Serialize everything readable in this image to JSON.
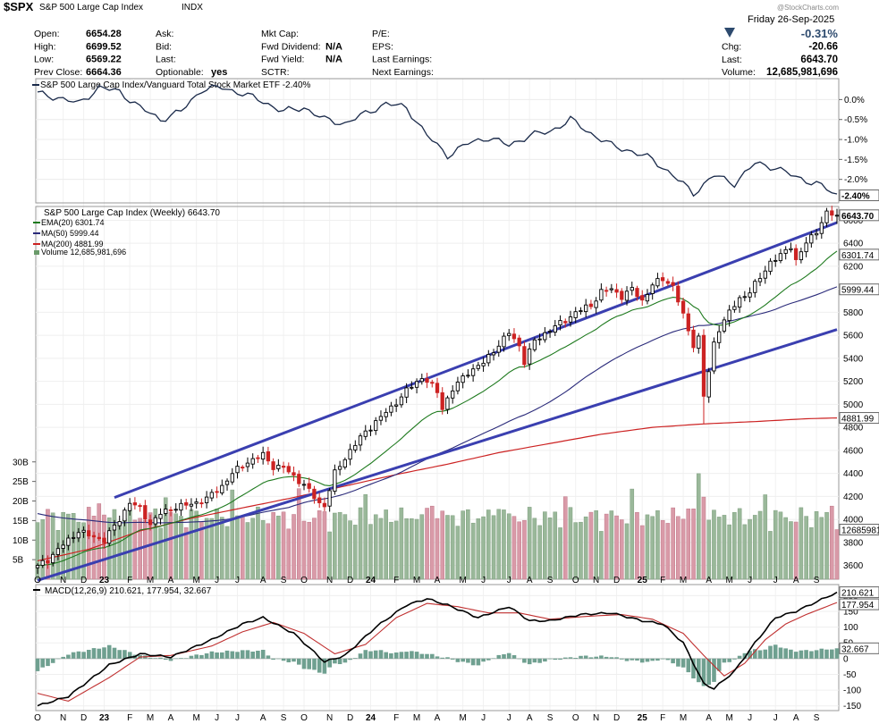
{
  "header": {
    "symbol": "$SPX",
    "name": "S&P 500 Large Cap Index",
    "exchange": "INDX",
    "date": "Friday  26-Sep-2025",
    "change_pct": "-0.31%",
    "watermark": "@StockCharts.com",
    "arrow": "triangle-down-icon",
    "col1": [
      {
        "label": "Open:",
        "value": "6654.28"
      },
      {
        "label": "High:",
        "value": "6699.52"
      },
      {
        "label": "Low:",
        "value": "6569.22"
      },
      {
        "label": "Prev Close:",
        "value": "6664.36"
      }
    ],
    "col2": [
      {
        "label": "Ask:",
        "value": ""
      },
      {
        "label": "Bid:",
        "value": ""
      },
      {
        "label": "Last:",
        "value": ""
      },
      {
        "label": "Optionable:",
        "value": "yes"
      }
    ],
    "col3": [
      {
        "label": "Mkt Cap:",
        "value": ""
      },
      {
        "label": "Fwd Dividend:",
        "value": "N/A"
      },
      {
        "label": "Fwd Yield:",
        "value": "N/A"
      },
      {
        "label": "SCTR:",
        "value": ""
      }
    ],
    "col4": [
      {
        "label": "P/E:",
        "value": ""
      },
      {
        "label": "EPS:",
        "value": ""
      },
      {
        "label": "Last Earnings:",
        "value": ""
      },
      {
        "label": "Next Earnings:",
        "value": ""
      }
    ],
    "col5": [
      {
        "label": "Chg:",
        "value": "-20.66"
      },
      {
        "label": "Last:",
        "value": "6643.70"
      },
      {
        "label": "Volume:",
        "value": "12,685,981,696"
      }
    ]
  },
  "colors": {
    "up": "#000000",
    "down": "#cc2222",
    "ema": "#1e7a1e",
    "ma50": "#2a2a7a",
    "ma200": "#cc2222",
    "channel": "#3a3fb0",
    "vol_up": "#9ab89a",
    "vol_down": "#d99aa8",
    "hist": "#6fa090"
  },
  "chart_data": [
    {
      "type": "line",
      "panel": "relative-strength",
      "title": "S&P 500 Large Cap Index/Vanguard Total Stock Market ETF -2.40%",
      "ylim": [
        -2.5,
        0.3
      ],
      "yticks": [
        0.0,
        -0.5,
        -1.0,
        -1.5,
        -2.0
      ],
      "ytick_labels": [
        "0.0%",
        "-0.5%",
        "-1.0%",
        "-1.5%",
        "-2.0%"
      ],
      "last_label": "-2.40%",
      "x": [
        0,
        4,
        8,
        12,
        16,
        20,
        24,
        28,
        32,
        36,
        40,
        44,
        48,
        52,
        56,
        60,
        64,
        68,
        72,
        76,
        80,
        84,
        88,
        92,
        96,
        100,
        104,
        108,
        112,
        116,
        120,
        124,
        128,
        132,
        136,
        140,
        144,
        148,
        152,
        156
      ],
      "values": [
        0.15,
        0.05,
        -0.1,
        0.3,
        0.2,
        -0.2,
        -0.5,
        -0.3,
        0.25,
        0.3,
        0.15,
        -0.05,
        -0.3,
        -0.2,
        -0.5,
        -0.6,
        -0.35,
        -0.1,
        -0.2,
        -0.9,
        -1.4,
        -1.1,
        -0.95,
        -1.15,
        -0.9,
        -0.8,
        -0.5,
        -0.85,
        -1.15,
        -1.3,
        -1.5,
        -1.9,
        -2.35,
        -1.9,
        -2.1,
        -1.6,
        -1.7,
        -1.95,
        -2.1,
        -2.4
      ]
    },
    {
      "type": "candlestick",
      "panel": "price",
      "title": "S&P 500 Large Cap Index (Weekly) 6643.70",
      "ylim": [
        3480,
        6720
      ],
      "yticks": [
        3600,
        3800,
        4000,
        4200,
        4400,
        4600,
        4800,
        5000,
        5200,
        5400,
        5600,
        5800,
        6000,
        6200,
        6400,
        6600
      ],
      "last_price_label": "6643.70",
      "level_labels": [
        "6301.74",
        "5999.44",
        "4881.99"
      ],
      "xlabels": [
        {
          "i": 0,
          "t": "O"
        },
        {
          "i": 5,
          "t": "N"
        },
        {
          "i": 9,
          "t": "D"
        },
        {
          "i": 13,
          "t": "23"
        },
        {
          "i": 18,
          "t": "F"
        },
        {
          "i": 22,
          "t": "M"
        },
        {
          "i": 26,
          "t": "A"
        },
        {
          "i": 31,
          "t": "M"
        },
        {
          "i": 35,
          "t": "J"
        },
        {
          "i": 39,
          "t": "J"
        },
        {
          "i": 44,
          "t": "A"
        },
        {
          "i": 48,
          "t": "S"
        },
        {
          "i": 52,
          "t": "O"
        },
        {
          "i": 57,
          "t": "N"
        },
        {
          "i": 61,
          "t": "D"
        },
        {
          "i": 65,
          "t": "24"
        },
        {
          "i": 70,
          "t": "F"
        },
        {
          "i": 74,
          "t": "M"
        },
        {
          "i": 78,
          "t": "A"
        },
        {
          "i": 83,
          "t": "M"
        },
        {
          "i": 87,
          "t": "J"
        },
        {
          "i": 92,
          "t": "J"
        },
        {
          "i": 96,
          "t": "A"
        },
        {
          "i": 100,
          "t": "S"
        },
        {
          "i": 105,
          "t": "O"
        },
        {
          "i": 109,
          "t": "N"
        },
        {
          "i": 113,
          "t": "D"
        },
        {
          "i": 118,
          "t": "25"
        },
        {
          "i": 122,
          "t": "F"
        },
        {
          "i": 126,
          "t": "M"
        },
        {
          "i": 131,
          "t": "A"
        },
        {
          "i": 135,
          "t": "M"
        },
        {
          "i": 139,
          "t": "J"
        },
        {
          "i": 144,
          "t": "J"
        },
        {
          "i": 148,
          "t": "A"
        },
        {
          "i": 152,
          "t": "S"
        }
      ],
      "anchors": [
        {
          "i": 0,
          "v": 3600
        },
        {
          "i": 2,
          "v": 3650
        },
        {
          "i": 5,
          "v": 3780
        },
        {
          "i": 8,
          "v": 3900
        },
        {
          "i": 10,
          "v": 3860
        },
        {
          "i": 13,
          "v": 3820
        },
        {
          "i": 16,
          "v": 4000
        },
        {
          "i": 18,
          "v": 4150
        },
        {
          "i": 20,
          "v": 4090
        },
        {
          "i": 22,
          "v": 3960
        },
        {
          "i": 24,
          "v": 4050
        },
        {
          "i": 27,
          "v": 4110
        },
        {
          "i": 30,
          "v": 4130
        },
        {
          "i": 33,
          "v": 4180
        },
        {
          "i": 36,
          "v": 4290
        },
        {
          "i": 38,
          "v": 4400
        },
        {
          "i": 41,
          "v": 4500
        },
        {
          "i": 44,
          "v": 4560
        },
        {
          "i": 46,
          "v": 4460
        },
        {
          "i": 48,
          "v": 4450
        },
        {
          "i": 52,
          "v": 4300
        },
        {
          "i": 55,
          "v": 4140
        },
        {
          "i": 56,
          "v": 4120
        },
        {
          "i": 58,
          "v": 4400
        },
        {
          "i": 61,
          "v": 4600
        },
        {
          "i": 64,
          "v": 4760
        },
        {
          "i": 66,
          "v": 4850
        },
        {
          "i": 69,
          "v": 4970
        },
        {
          "i": 72,
          "v": 5120
        },
        {
          "i": 75,
          "v": 5230
        },
        {
          "i": 76,
          "v": 5210
        },
        {
          "i": 78,
          "v": 5100
        },
        {
          "i": 79,
          "v": 4970
        },
        {
          "i": 81,
          "v": 5130
        },
        {
          "i": 84,
          "v": 5280
        },
        {
          "i": 87,
          "v": 5360
        },
        {
          "i": 90,
          "v": 5520
        },
        {
          "i": 92,
          "v": 5620
        },
        {
          "i": 94,
          "v": 5510
        },
        {
          "i": 95,
          "v": 5370
        },
        {
          "i": 97,
          "v": 5550
        },
        {
          "i": 100,
          "v": 5650
        },
        {
          "i": 103,
          "v": 5730
        },
        {
          "i": 105,
          "v": 5800
        },
        {
          "i": 108,
          "v": 5860
        },
        {
          "i": 110,
          "v": 5980
        },
        {
          "i": 112,
          "v": 6000
        },
        {
          "i": 114,
          "v": 5940
        },
        {
          "i": 116,
          "v": 6000
        },
        {
          "i": 118,
          "v": 5900
        },
        {
          "i": 120,
          "v": 6040
        },
        {
          "i": 122,
          "v": 6090
        },
        {
          "i": 124,
          "v": 6030
        },
        {
          "i": 125,
          "v": 5900
        },
        {
          "i": 127,
          "v": 5640
        },
        {
          "i": 128,
          "v": 5520
        },
        {
          "i": 129,
          "v": 5580
        },
        {
          "i": 130,
          "v": 5070
        },
        {
          "i": 131,
          "v": 5280
        },
        {
          "i": 132,
          "v": 5530
        },
        {
          "i": 133,
          "v": 5660
        },
        {
          "i": 135,
          "v": 5800
        },
        {
          "i": 137,
          "v": 5920
        },
        {
          "i": 139,
          "v": 5980
        },
        {
          "i": 141,
          "v": 6100
        },
        {
          "i": 143,
          "v": 6240
        },
        {
          "i": 145,
          "v": 6290
        },
        {
          "i": 147,
          "v": 6380
        },
        {
          "i": 148,
          "v": 6250
        },
        {
          "i": 150,
          "v": 6400
        },
        {
          "i": 152,
          "v": 6510
        },
        {
          "i": 154,
          "v": 6660
        },
        {
          "i": 156,
          "v": 6643.7
        }
      ],
      "channel_upper": [
        {
          "i": 15,
          "v": 4190
        },
        {
          "i": 156,
          "v": 6580
        }
      ],
      "channel_lower": [
        {
          "i": 0,
          "v": 3470
        },
        {
          "i": 156,
          "v": 5650
        }
      ],
      "ma200_anchors": [
        {
          "i": 0,
          "v": 3640
        },
        {
          "i": 10,
          "v": 3740
        },
        {
          "i": 20,
          "v": 3900
        },
        {
          "i": 30,
          "v": 4010
        },
        {
          "i": 40,
          "v": 4100
        },
        {
          "i": 50,
          "v": 4190
        },
        {
          "i": 60,
          "v": 4290
        },
        {
          "i": 70,
          "v": 4390
        },
        {
          "i": 80,
          "v": 4480
        },
        {
          "i": 90,
          "v": 4580
        },
        {
          "i": 100,
          "v": 4660
        },
        {
          "i": 110,
          "v": 4740
        },
        {
          "i": 120,
          "v": 4800
        },
        {
          "i": 130,
          "v": 4830
        },
        {
          "i": 140,
          "v": 4850
        },
        {
          "i": 150,
          "v": 4875
        },
        {
          "i": 156,
          "v": 4881.99
        }
      ]
    },
    {
      "type": "bar",
      "panel": "volume",
      "ylim": [
        0,
        32
      ],
      "yticks": [
        5,
        10,
        15,
        20,
        25,
        30
      ],
      "ytick_labels": [
        "5B",
        "10B",
        "15B",
        "20B",
        "25B",
        "30B"
      ],
      "last_label": "12685981696",
      "count": 157
    },
    {
      "type": "line",
      "panel": "macd",
      "title": "MACD(12,26,9) 210.621, 177.954, 32.667",
      "ylim": [
        -165,
        235
      ],
      "yticks": [
        200,
        150,
        100,
        50,
        0,
        -50,
        -100,
        -150
      ],
      "last_labels": [
        "210.621",
        "177.954",
        "32.667"
      ],
      "macd_anchors": [
        {
          "i": 0,
          "v": -150
        },
        {
          "i": 6,
          "v": -120
        },
        {
          "i": 14,
          "v": -20
        },
        {
          "i": 20,
          "v": 15
        },
        {
          "i": 26,
          "v": 5
        },
        {
          "i": 34,
          "v": 60
        },
        {
          "i": 40,
          "v": 110
        },
        {
          "i": 44,
          "v": 130
        },
        {
          "i": 50,
          "v": 80
        },
        {
          "i": 56,
          "v": -10
        },
        {
          "i": 60,
          "v": 10
        },
        {
          "i": 66,
          "v": 100
        },
        {
          "i": 72,
          "v": 170
        },
        {
          "i": 76,
          "v": 190
        },
        {
          "i": 80,
          "v": 170
        },
        {
          "i": 86,
          "v": 130
        },
        {
          "i": 92,
          "v": 165
        },
        {
          "i": 96,
          "v": 120
        },
        {
          "i": 100,
          "v": 120
        },
        {
          "i": 106,
          "v": 140
        },
        {
          "i": 112,
          "v": 145
        },
        {
          "i": 118,
          "v": 120
        },
        {
          "i": 122,
          "v": 110
        },
        {
          "i": 126,
          "v": 50
        },
        {
          "i": 130,
          "v": -80
        },
        {
          "i": 132,
          "v": -95
        },
        {
          "i": 136,
          "v": -40
        },
        {
          "i": 140,
          "v": 50
        },
        {
          "i": 144,
          "v": 130
        },
        {
          "i": 148,
          "v": 150
        },
        {
          "i": 152,
          "v": 180
        },
        {
          "i": 156,
          "v": 210.621
        }
      ],
      "signal_anchors": [
        {
          "i": 0,
          "v": -110
        },
        {
          "i": 6,
          "v": -135
        },
        {
          "i": 14,
          "v": -60
        },
        {
          "i": 20,
          "v": 5
        },
        {
          "i": 26,
          "v": 10
        },
        {
          "i": 34,
          "v": 40
        },
        {
          "i": 40,
          "v": 85
        },
        {
          "i": 46,
          "v": 115
        },
        {
          "i": 52,
          "v": 80
        },
        {
          "i": 58,
          "v": 15
        },
        {
          "i": 64,
          "v": 45
        },
        {
          "i": 70,
          "v": 130
        },
        {
          "i": 76,
          "v": 175
        },
        {
          "i": 82,
          "v": 165
        },
        {
          "i": 88,
          "v": 145
        },
        {
          "i": 94,
          "v": 145
        },
        {
          "i": 100,
          "v": 125
        },
        {
          "i": 108,
          "v": 135
        },
        {
          "i": 114,
          "v": 140
        },
        {
          "i": 120,
          "v": 125
        },
        {
          "i": 126,
          "v": 80
        },
        {
          "i": 130,
          "v": 10
        },
        {
          "i": 134,
          "v": -55
        },
        {
          "i": 138,
          "v": -15
        },
        {
          "i": 142,
          "v": 60
        },
        {
          "i": 146,
          "v": 110
        },
        {
          "i": 150,
          "v": 140
        },
        {
          "i": 156,
          "v": 177.954
        }
      ]
    }
  ],
  "legends": {
    "ema": "EMA(20) 6301.74",
    "ma50": "MA(50) 5999.44",
    "ma200": "MA(200) 4881.99",
    "volume": "Volume 12,685,981,696"
  }
}
